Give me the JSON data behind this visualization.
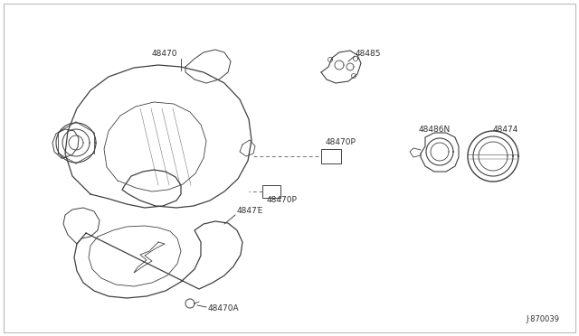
{
  "background_color": "#ffffff",
  "line_color": "#404040",
  "text_color": "#303030",
  "dashed_color": "#707070",
  "fig_ref": "J·870039",
  "figsize": [
    6.4,
    3.72
  ],
  "dpi": 100,
  "xlim": [
    0,
    640
  ],
  "ylim": [
    0,
    372
  ]
}
